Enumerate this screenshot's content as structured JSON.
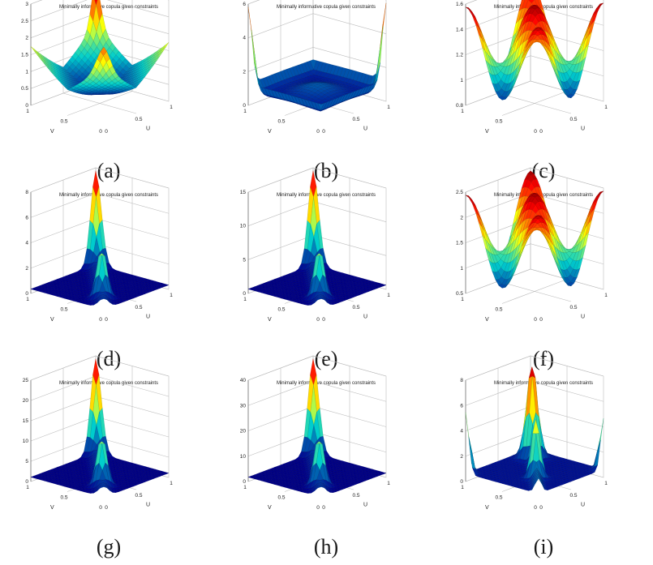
{
  "panels": [
    {
      "id": "a",
      "caption": "(a)",
      "title": "Minimally informative copula given constraints",
      "zticks": [
        "0",
        "0.5",
        "1",
        "1.5",
        "2",
        "2.5",
        "3"
      ],
      "shape": "bowl-cross",
      "colormap": "jet",
      "xlabel": "U",
      "ylabel": "V",
      "xticks": [
        "0",
        "0.5",
        "1"
      ],
      "yticks": [
        "0",
        "0.5",
        "1"
      ]
    },
    {
      "id": "b",
      "caption": "(b)",
      "title": "Minimally informative copula given constraints",
      "zticks": [
        "0",
        "2",
        "4",
        "6"
      ],
      "shape": "bowl-corners",
      "colormap": "jet",
      "xlabel": "U",
      "ylabel": "V",
      "xticks": [
        "0",
        "0.5",
        "1"
      ],
      "yticks": [
        "0",
        "0.5",
        "1"
      ]
    },
    {
      "id": "c",
      "caption": "(c)",
      "title": "Minimally informative copula given constraints",
      "zticks": [
        "0.8",
        "1",
        "1.2",
        "1.4",
        "1.6"
      ],
      "shape": "wave",
      "colormap": "jet",
      "xlabel": "U",
      "ylabel": "V",
      "xticks": [
        "0",
        "0.5",
        "1"
      ],
      "yticks": [
        "0",
        "0.5",
        "1"
      ]
    },
    {
      "id": "d",
      "caption": "(d)",
      "title": "Minimally informative copula given constraints",
      "zticks": [
        "0",
        "2",
        "4",
        "6",
        "8"
      ],
      "shape": "diagonal-peaks",
      "colormap": "jet",
      "xlabel": "U",
      "ylabel": "V",
      "xticks": [
        "0",
        "0.5",
        "1"
      ],
      "yticks": [
        "0",
        "0.5",
        "1"
      ]
    },
    {
      "id": "e",
      "caption": "(e)",
      "title": "Minimally informative copula given constraints",
      "zticks": [
        "0",
        "5",
        "10",
        "15"
      ],
      "shape": "diagonal-peaks",
      "colormap": "jet",
      "xlabel": "U",
      "ylabel": "V",
      "xticks": [
        "0",
        "0.5",
        "1"
      ],
      "yticks": [
        "0",
        "0.5",
        "1"
      ]
    },
    {
      "id": "f",
      "caption": "(f)",
      "title": "Minimally informative copula given constraints",
      "zticks": [
        "0.5",
        "1",
        "1.5",
        "2",
        "2.5"
      ],
      "shape": "wave",
      "colormap": "jet",
      "xlabel": "U",
      "ylabel": "V",
      "xticks": [
        "0",
        "0.5",
        "1"
      ],
      "yticks": [
        "0",
        "0.5",
        "1"
      ]
    },
    {
      "id": "g",
      "caption": "(g)",
      "title": "Minimally informative copula given constraints",
      "zticks": [
        "0",
        "5",
        "10",
        "15",
        "20",
        "25"
      ],
      "shape": "diagonal-peaks",
      "colormap": "jet",
      "xlabel": "U",
      "ylabel": "V",
      "xticks": [
        "0",
        "0.5",
        "1"
      ],
      "yticks": [
        "0",
        "0.5",
        "1"
      ]
    },
    {
      "id": "h",
      "caption": "(h)",
      "title": "Minimally informative copula given constraints",
      "zticks": [
        "0",
        "10",
        "20",
        "30",
        "40"
      ],
      "shape": "diagonal-peaks",
      "colormap": "jet",
      "xlabel": "U",
      "ylabel": "V",
      "xticks": [
        "0",
        "0.5",
        "1"
      ],
      "yticks": [
        "0",
        "0.5",
        "1"
      ]
    },
    {
      "id": "i",
      "caption": "(i)",
      "title": "Minimally informative copula given constraints",
      "zticks": [
        "0",
        "2",
        "4",
        "6",
        "8"
      ],
      "shape": "ridge-corners",
      "colormap": "jet",
      "xlabel": "U",
      "ylabel": "V",
      "xticks": [
        "0",
        "0.5",
        "1"
      ],
      "yticks": [
        "0",
        "0.5",
        "1"
      ]
    }
  ]
}
